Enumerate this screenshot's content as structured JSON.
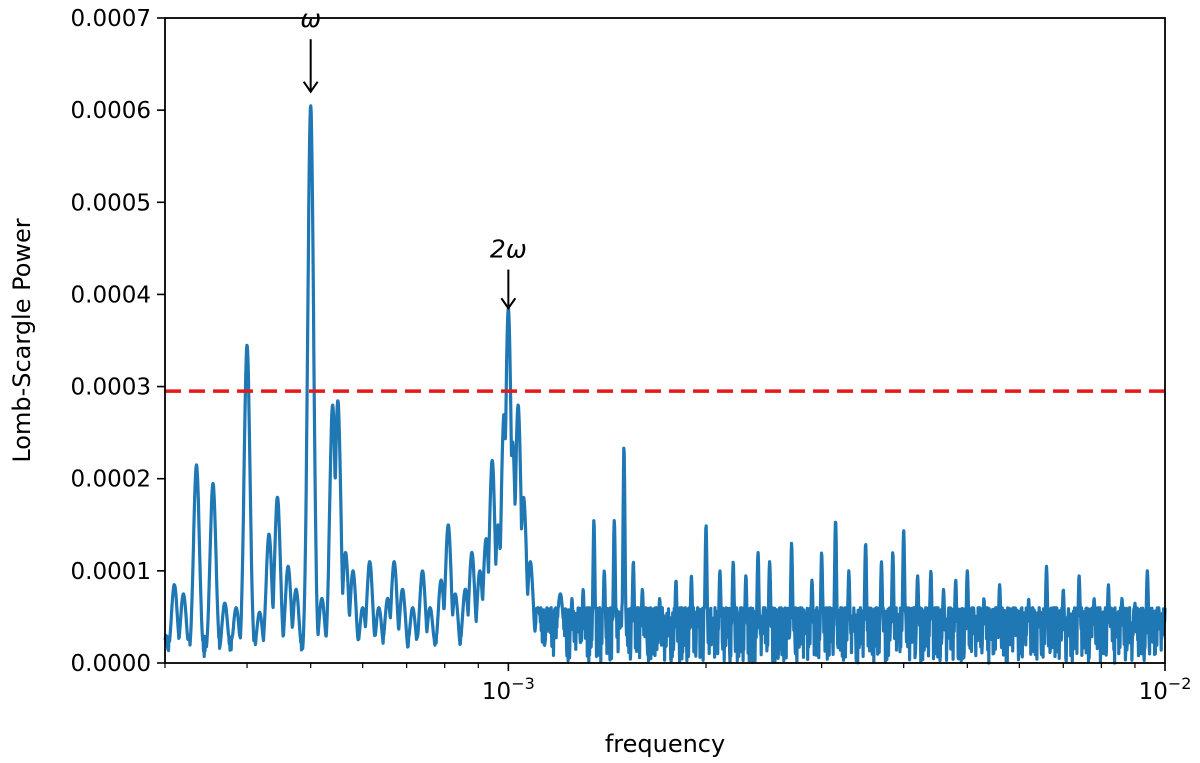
{
  "chart_data": {
    "type": "line",
    "title": "",
    "xlabel": "frequency",
    "ylabel": "Lomb-Scargle Power",
    "x_scale": "log",
    "xlim": [
      0.0003,
      0.01
    ],
    "ylim": [
      0.0,
      0.0007
    ],
    "y_ticks": [
      0.0,
      0.0001,
      0.0002,
      0.0003,
      0.0004,
      0.0005,
      0.0006,
      0.0007
    ],
    "y_tick_labels": [
      "0.0000",
      "0.0001",
      "0.0002",
      "0.0003",
      "0.0004",
      "0.0005",
      "0.0006",
      "0.0007"
    ],
    "x_ticks": [
      0.001,
      0.01
    ],
    "x_tick_labels": [
      {
        "base": "10",
        "exp": "−3"
      },
      {
        "base": "10",
        "exp": "−2"
      }
    ],
    "grid": false,
    "colors": {
      "series": "#1f77b4",
      "threshold": "#e41a1c",
      "axes": "#000000"
    },
    "threshold": {
      "y": 0.000295,
      "style": "dashed"
    },
    "annotations": [
      {
        "text": "ω",
        "x": 0.0005,
        "y_arrow_end": 0.00062,
        "y_text": 0.00069
      },
      {
        "text": "2ω",
        "x": 0.001,
        "y_arrow_end": 0.000385,
        "y_text": 0.00044
      }
    ],
    "series": [
      {
        "peaks": [
          [
            0.0003,
            2.5e-05
          ],
          [
            0.00031,
            8.5e-05
          ],
          [
            0.00032,
            7.5e-05
          ],
          [
            0.000335,
            0.000215
          ],
          [
            0.000355,
            0.000195
          ],
          [
            0.00037,
            6.5e-05
          ],
          [
            0.000385,
            6e-05
          ],
          [
            0.0004,
            0.000345
          ],
          [
            0.000418,
            5.5e-05
          ],
          [
            0.000432,
            0.00014
          ],
          [
            0.000445,
            0.00018
          ],
          [
            0.000462,
            0.000105
          ],
          [
            0.000475,
            8e-05
          ],
          [
            0.0005,
            0.000605
          ],
          [
            0.00052,
            7e-05
          ],
          [
            0.00054,
            0.00028
          ],
          [
            0.00055,
            0.000285
          ],
          [
            0.000565,
            0.00012
          ],
          [
            0.00058,
            0.0001
          ],
          [
            0.0006,
            6e-05
          ],
          [
            0.000615,
            0.00011
          ],
          [
            0.000635,
            6e-05
          ],
          [
            0.000655,
            7e-05
          ],
          [
            0.00067,
            0.00011
          ],
          [
            0.00069,
            8e-05
          ],
          [
            0.000715,
            6e-05
          ],
          [
            0.00074,
            0.0001
          ],
          [
            0.00076,
            6e-05
          ],
          [
            0.00079,
            9e-05
          ],
          [
            0.00081,
            0.00015
          ],
          [
            0.00083,
            7.5e-05
          ],
          [
            0.00086,
            8e-05
          ],
          [
            0.00088,
            0.00012
          ],
          [
            0.000905,
            0.0001
          ],
          [
            0.000925,
            0.000135
          ],
          [
            0.000945,
            0.00022
          ],
          [
            0.000965,
            0.00015
          ],
          [
            0.000985,
            0.00027
          ],
          [
            0.001,
            0.000385
          ],
          [
            0.001015,
            0.00024
          ],
          [
            0.001035,
            0.00028
          ],
          [
            0.001055,
            0.00018
          ],
          [
            0.00108,
            0.00011
          ],
          [
            0.00111,
            6e-05
          ],
          [
            0.00115,
            4e-05
          ],
          [
            0.0012,
            7.5e-05
          ],
          [
            0.00125,
            7e-05
          ],
          [
            0.0013,
            8e-05
          ],
          [
            0.00135,
            0.000155
          ],
          [
            0.0014,
            0.0001
          ],
          [
            0.00145,
            0.000155
          ],
          [
            0.0015,
            0.000235
          ],
          [
            0.00155,
            0.00011
          ],
          [
            0.0016,
            8e-05
          ],
          [
            0.0017,
            7e-05
          ],
          [
            0.0018,
            9e-05
          ],
          [
            0.0019,
            9.5e-05
          ],
          [
            0.002,
            0.00015
          ],
          [
            0.0021,
            0.0001
          ],
          [
            0.0022,
            0.00011
          ],
          [
            0.0023,
            9.5e-05
          ],
          [
            0.0024,
            0.00012
          ],
          [
            0.0025,
            0.00011
          ],
          [
            0.0027,
            0.00013
          ],
          [
            0.0029,
            9e-05
          ],
          [
            0.003,
            0.00012
          ],
          [
            0.00315,
            0.000155
          ],
          [
            0.0033,
            0.0001
          ],
          [
            0.0035,
            0.00013
          ],
          [
            0.0037,
            0.00011
          ],
          [
            0.00385,
            0.00012
          ],
          [
            0.004,
            0.000145
          ],
          [
            0.0042,
            9.5e-05
          ],
          [
            0.0044,
            0.0001
          ],
          [
            0.0046,
            8e-05
          ],
          [
            0.0048,
            9e-05
          ],
          [
            0.005,
            0.0001
          ],
          [
            0.0053,
            7e-05
          ],
          [
            0.0056,
            8.5e-05
          ],
          [
            0.0059,
            6e-05
          ],
          [
            0.0062,
            7e-05
          ],
          [
            0.0066,
            0.000105
          ],
          [
            0.007,
            8e-05
          ],
          [
            0.0074,
            9.5e-05
          ],
          [
            0.0078,
            7e-05
          ],
          [
            0.0082,
            8.5e-05
          ],
          [
            0.0086,
            7e-05
          ],
          [
            0.009,
            6.5e-05
          ],
          [
            0.0094,
            0.0001
          ],
          [
            0.0098,
            5.5e-05
          ],
          [
            0.01,
            4.5e-05
          ]
        ]
      }
    ]
  }
}
